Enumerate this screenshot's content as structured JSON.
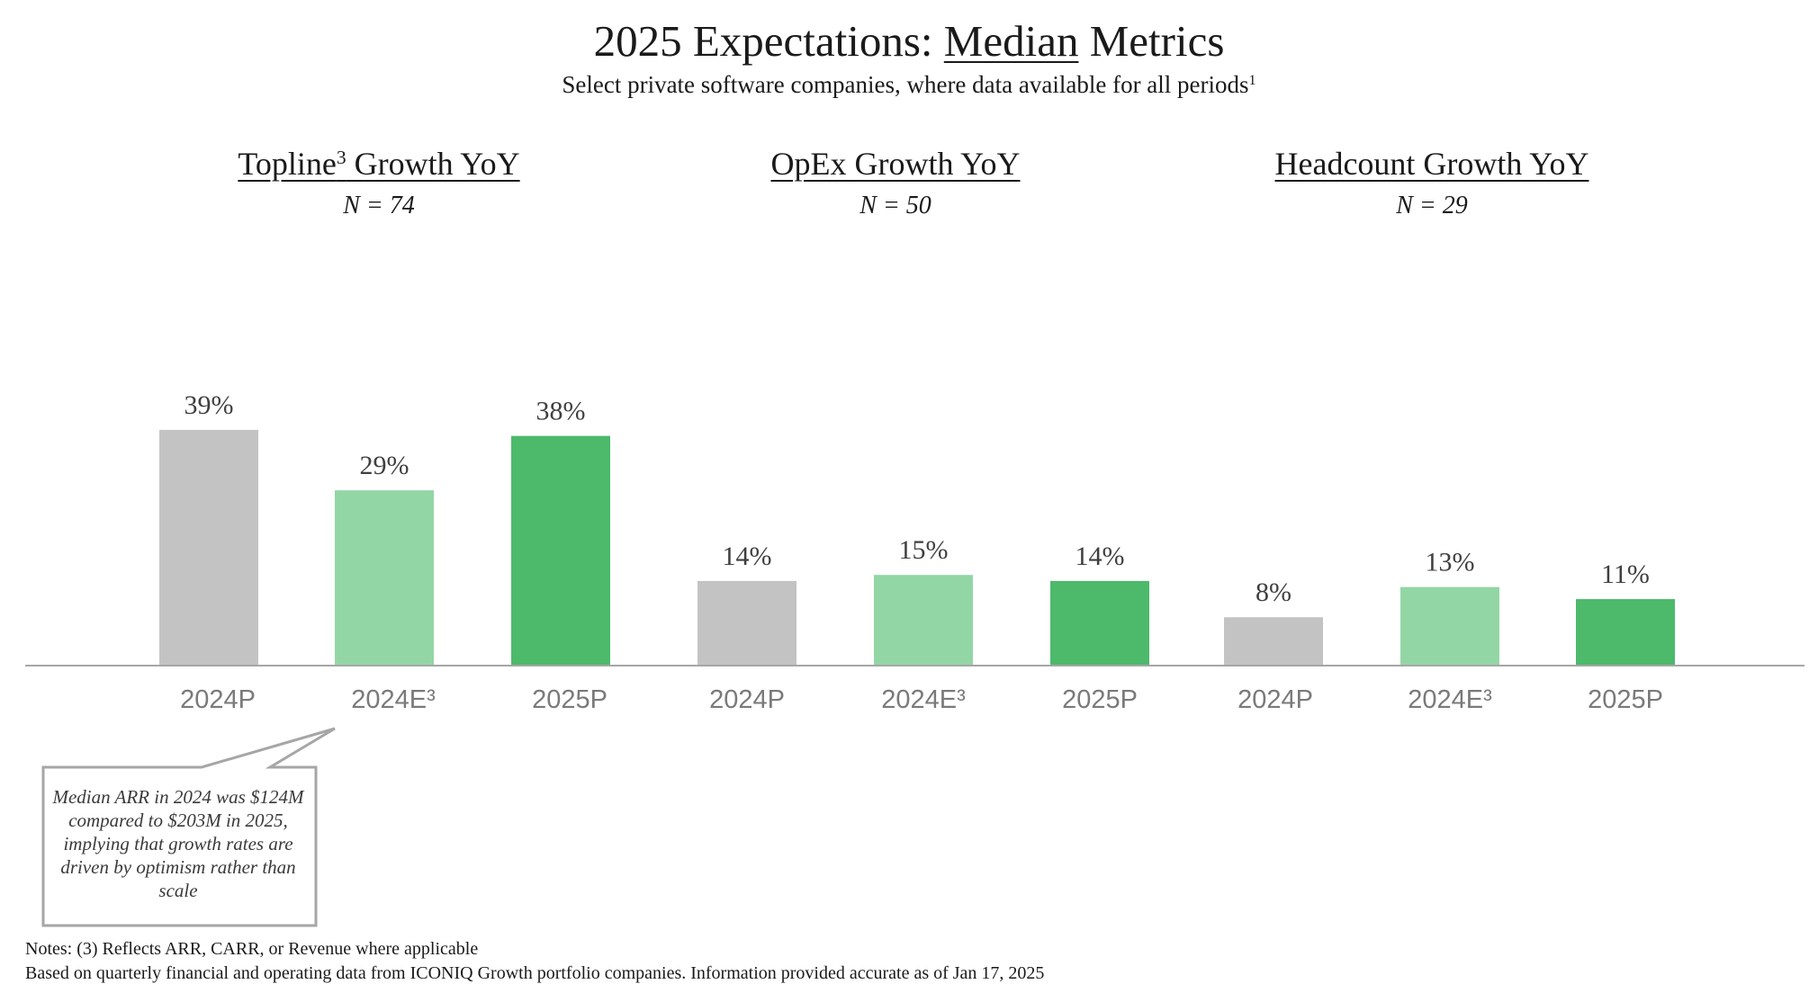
{
  "title": {
    "before": "2025 Expectations: ",
    "underlined": "Median",
    "after": " Metrics"
  },
  "subtitle": {
    "text": "Select private software companies, where data available for all periods",
    "footnote": "1"
  },
  "panels": [
    {
      "title": "Topline",
      "title_sup": "3",
      "title_rest": " Growth YoY",
      "n": "N = 74"
    },
    {
      "title": "OpEx Growth YoY",
      "title_sup": "",
      "title_rest": "",
      "n": "N = 50"
    },
    {
      "title": "Headcount Growth YoY",
      "title_sup": "",
      "title_rest": "",
      "n": "N = 29"
    }
  ],
  "colors": {
    "prior": "#c3c3c3",
    "estimate": "#93d6a5",
    "projection": "#4cb96b",
    "axis": "#a6a6a6",
    "tick_label": "#7a7a7a",
    "value_label": "#3f3f3f"
  },
  "chart_data": {
    "type": "bar",
    "ylim": [
      0,
      40
    ],
    "categories": [
      "2024P",
      "2024E³",
      "2025P",
      "2024P",
      "2024E³",
      "2025P",
      "2024P",
      "2024E³",
      "2025P"
    ],
    "values": [
      39,
      29,
      38,
      14,
      15,
      14,
      8,
      13,
      11
    ],
    "data_labels": [
      "39%",
      "29%",
      "38%",
      "14%",
      "15%",
      "14%",
      "8%",
      "13%",
      "11%"
    ],
    "groups": [
      "Topline³ Growth YoY",
      "OpEx Growth YoY",
      "Headcount Growth YoY"
    ],
    "bar_color_keys": [
      "prior",
      "estimate",
      "projection",
      "prior",
      "estimate",
      "projection",
      "prior",
      "estimate",
      "projection"
    ],
    "grid": false,
    "legend": "none"
  },
  "callout": {
    "text": "Median ARR in 2024 was $124M compared to $203M in 2025, implying that growth rates are driven by optimism rather than scale"
  },
  "notes": {
    "line1": "Notes: (3) Reflects ARR, CARR, or Revenue where applicable",
    "line2": "Based on quarterly financial and operating data from ICONIQ Growth portfolio companies. Information provided accurate as of Jan 17, 2025"
  }
}
